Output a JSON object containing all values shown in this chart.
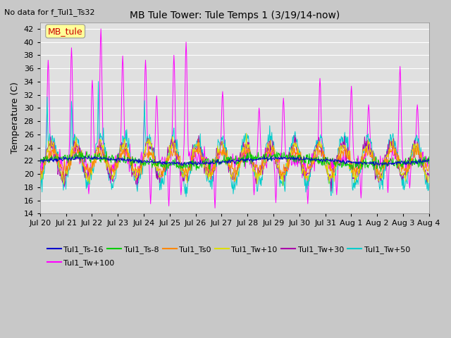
{
  "title": "MB Tule Tower: Tule Temps 1 (3/19/14-now)",
  "no_data_label": "No data for f_Tul1_Ts32",
  "ylabel": "Temperature (C)",
  "ylim": [
    14,
    43
  ],
  "yticks": [
    14,
    16,
    18,
    20,
    22,
    24,
    26,
    28,
    30,
    32,
    34,
    36,
    38,
    40,
    42
  ],
  "fig_bg": "#c8c8c8",
  "plot_bg": "#e0e0e0",
  "grid_color": "#ffffff",
  "series_labels": [
    "Tul1_Ts-16",
    "Tul1_Ts-8",
    "Tul1_Ts0",
    "Tul1_Tw+10",
    "Tul1_Tw+30",
    "Tul1_Tw+50",
    "Tul1_Tw+100"
  ],
  "series_colors": [
    "#0000cc",
    "#00cc00",
    "#ff8800",
    "#dddd00",
    "#aa00aa",
    "#00cccc",
    "#ff00ff"
  ],
  "x_tick_labels": [
    "Jul 20",
    "Jul 21",
    "Jul 22",
    "Jul 23",
    "Jul 24",
    "Jul 25",
    "Jul 26",
    "Jul 27",
    "Jul 28",
    "Jul 29",
    "Jul 30",
    "Jul 31",
    "Aug 1",
    "Aug 2",
    "Aug 3",
    "Aug 4"
  ],
  "mb_tule_label": "MB_tule",
  "mb_tule_color": "#cc0000",
  "mb_tule_bg": "#ffff99"
}
